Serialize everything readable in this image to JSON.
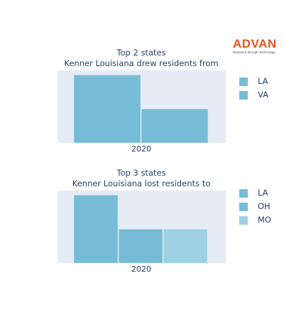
{
  "logo": {
    "text": "ADVAN",
    "tagline": "Research through Technology"
  },
  "chart_data": [
    {
      "type": "bar",
      "title_lines": [
        "Top 2 states",
        "Kenner Louisiana drew residents from"
      ],
      "categories": [
        "2020"
      ],
      "series": [
        {
          "name": "LA",
          "values": [
            3
          ],
          "color": "#76bcd6"
        },
        {
          "name": "VA",
          "values": [
            1.5
          ],
          "color": "#76bcd6"
        }
      ],
      "ylim": [
        0,
        3.2
      ],
      "legend_position": "right"
    },
    {
      "type": "bar",
      "title_lines": [
        "Top 3 states",
        "Kenner Louisiana lost residents to"
      ],
      "categories": [
        "2020"
      ],
      "series": [
        {
          "name": "LA",
          "values": [
            3
          ],
          "color": "#76bcd6"
        },
        {
          "name": "OH",
          "values": [
            1.5
          ],
          "color": "#76bcd6"
        },
        {
          "name": "MO",
          "values": [
            1.5
          ],
          "color": "#9dd1e3"
        }
      ],
      "ylim": [
        0,
        3.2
      ],
      "legend_position": "right"
    }
  ]
}
